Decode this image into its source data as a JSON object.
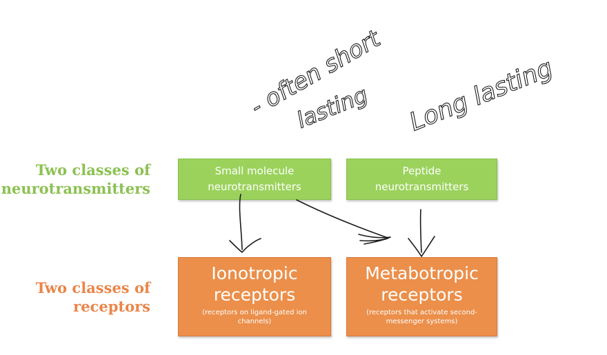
{
  "labels": {
    "neurotransmitters": [
      "Two classes of",
      "neurotransmitters"
    ],
    "receptors": [
      "Two classes of",
      "receptors"
    ]
  },
  "boxes": {
    "small_molecule": [
      "Small molecule",
      "neurotransmitters"
    ],
    "peptide": [
      "Peptide",
      "neurotransmitters"
    ],
    "ionotropic": {
      "title": [
        "Ionotropic",
        "receptors"
      ],
      "subtitle": [
        "(receptors on ligand-gated ion",
        "channels)"
      ]
    },
    "metabotropic": {
      "title": [
        "Metabotropic",
        "receptors"
      ],
      "subtitle": [
        "(receptors that activate second-",
        "messenger systems)"
      ]
    }
  },
  "handwriting": {
    "note_small_molecule": [
      "- often short",
      "lasting"
    ],
    "note_peptide": "Long lasting"
  },
  "colors": {
    "green_label": "#8cc152",
    "orange_label": "#e9864a",
    "green_box": "#9bd25c",
    "orange_box": "#eb8f4a",
    "ink": "#1a1a1a"
  }
}
